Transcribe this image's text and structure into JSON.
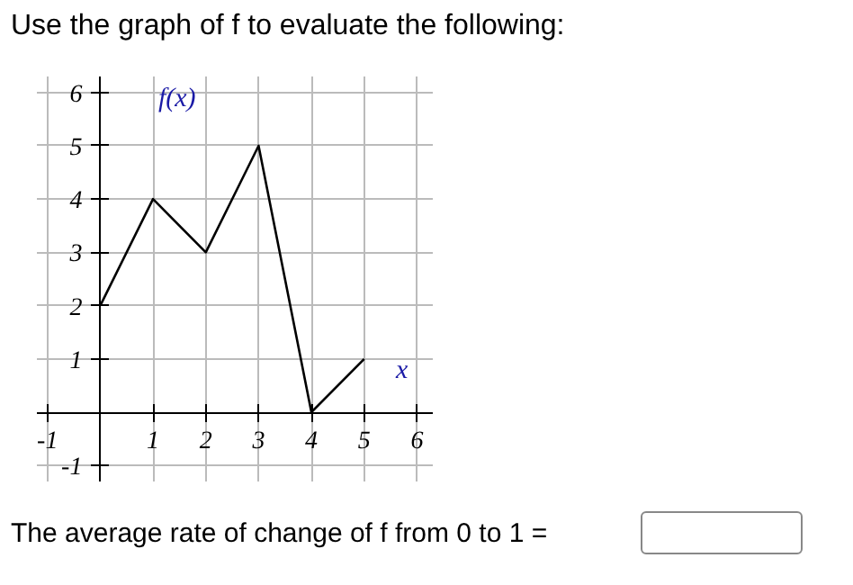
{
  "chart_data": {
    "type": "line",
    "title": "Use the graph of f to evaluate the following:",
    "x": [
      0,
      1,
      2,
      3,
      4,
      5
    ],
    "series": [
      {
        "color": "#000000",
        "values": [
          2,
          4,
          3,
          5,
          0,
          1
        ]
      }
    ],
    "xlim": [
      -1.2,
      6.3
    ],
    "ylim": [
      -1.3,
      6.3
    ],
    "xticks": [
      -1,
      1,
      2,
      3,
      4,
      5,
      6
    ],
    "yticks": [
      -1,
      1,
      2,
      3,
      4,
      5,
      6
    ],
    "grid": true,
    "marker": "none",
    "line_style": "solid",
    "annotations": [
      "f(x)",
      "x",
      "The average rate of change of f from 0 to 1 ="
    ]
  }
}
